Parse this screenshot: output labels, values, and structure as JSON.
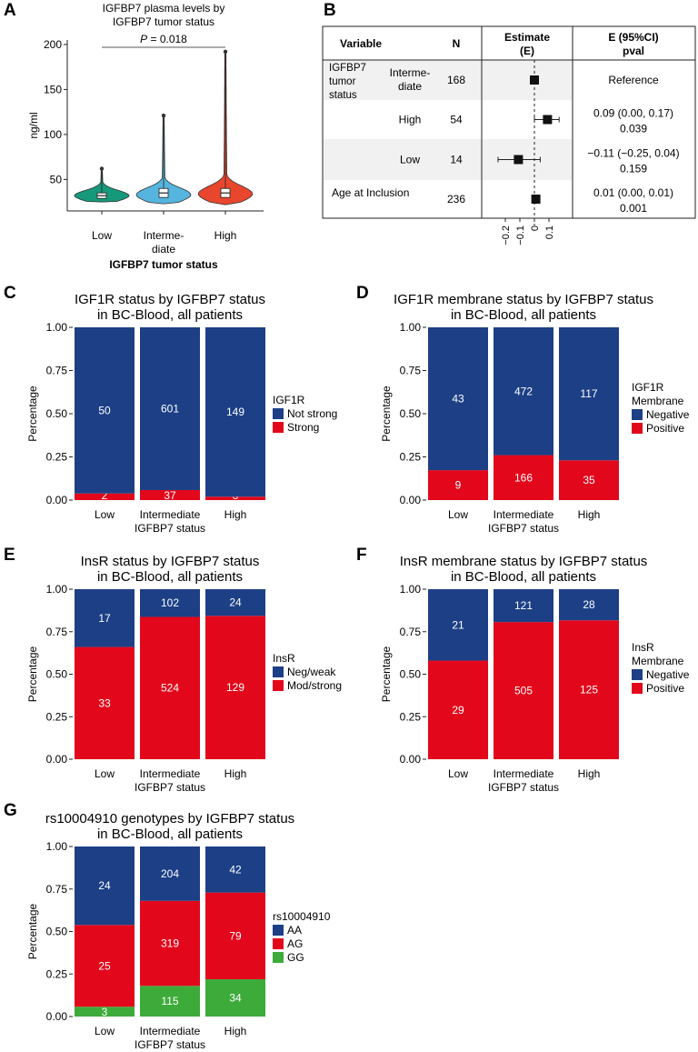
{
  "colors": {
    "navy": "#1c3f86",
    "red": "#e2071b",
    "green": "#3dab3a",
    "violin_low": "#16997a",
    "violin_mid": "#55b5df",
    "violin_high": "#e8462d",
    "text": "#1a1a1a"
  },
  "panels": {
    "a": "A",
    "b": "B",
    "c": "C",
    "d": "D",
    "e": "E",
    "f": "F",
    "g": "G"
  },
  "chart_data": [
    {
      "id": "A",
      "type": "violin",
      "title_line1": "IGFBP7 plasma levels by",
      "title_line2": "IGFBP7 tumor status",
      "ylabel": "ng/ml",
      "xlabel": "IGFBP7 tumor status",
      "y_ticks": [
        "50",
        "100",
        "150",
        "200"
      ],
      "ylim": [
        15,
        205
      ],
      "p_label": "P",
      "p_value": "= 0.018",
      "groups": [
        {
          "label_line1": "Low",
          "label_line2": "",
          "min": 25,
          "q1": 29,
          "median": 32,
          "q3": 35,
          "max": 62,
          "mode": 32,
          "spread": 26
        },
        {
          "label_line1": "Interme-",
          "label_line2": "diate",
          "min": 23,
          "q1": 30,
          "median": 35,
          "q3": 40,
          "max": 121,
          "mode": 33,
          "spread": 34
        },
        {
          "label_line1": "High",
          "label_line2": "",
          "min": 22,
          "q1": 30,
          "median": 35,
          "q3": 40,
          "max": 192,
          "mode": 34,
          "spread": 38
        }
      ]
    },
    {
      "id": "B",
      "type": "forest",
      "headers": {
        "variable": "Variable",
        "n": "N",
        "estimate1": "Estimate",
        "estimate2": "(E)",
        "ci1": "E (95%CI)",
        "ci2": "pval"
      },
      "x_ticks": [
        "−0.2",
        "−0.1",
        "0",
        "0.1"
      ],
      "x_tick_values": [
        -0.2,
        -0.1,
        0,
        0.1
      ],
      "xlim": [
        -0.3,
        0.2
      ],
      "rows": [
        {
          "var_a1": "IGFBP7",
          "var_a2": "tumor",
          "var_a3": "status",
          "var_b1": "Interme-",
          "var_b2": "diate",
          "n": "168",
          "est": 0.0,
          "lo": null,
          "hi": null,
          "ci": "Reference",
          "pval": ""
        },
        {
          "var_b1": "High",
          "n": "54",
          "est": 0.09,
          "lo": 0.0,
          "hi": 0.17,
          "ci": "0.09 (0.00, 0.17)",
          "pval": "0.039"
        },
        {
          "var_b1": "Low",
          "n": "14",
          "est": -0.11,
          "lo": -0.25,
          "hi": 0.04,
          "ci": "−0.11 (−0.25, 0.04)",
          "pval": "0.159"
        },
        {
          "var_a1": "Age at Inclusion",
          "n": "236",
          "est": 0.01,
          "lo": 0.0,
          "hi": 0.01,
          "ci": "0.01 (0.00, 0.01)",
          "pval": "0.001"
        }
      ]
    },
    {
      "id": "C",
      "type": "stacked_bar",
      "title_line1": "IGF1R status by IGFBP7 status",
      "title_line2": "in BC-Blood, all patients",
      "ylabel": "Percentage",
      "xlabel": "IGFBP7 status",
      "categories": [
        "Low",
        "Intermediate",
        "High"
      ],
      "y_ticks": [
        "0.00",
        "0.25",
        "0.50",
        "0.75",
        "1.00"
      ],
      "legend_title": [
        "IGF1R"
      ],
      "series": [
        {
          "name": "Not strong",
          "color": "#1c3f86",
          "values": [
            50,
            601,
            149
          ]
        },
        {
          "name": "Strong",
          "color": "#e2071b",
          "values": [
            2,
            37,
            3
          ]
        }
      ]
    },
    {
      "id": "D",
      "type": "stacked_bar",
      "title_line1": "IGF1R membrane status by IGFBP7 status",
      "title_line2": "in BC-Blood, all patients",
      "ylabel": "Percentage",
      "xlabel": "IGFBP7 status",
      "categories": [
        "Low",
        "Intermediate",
        "High"
      ],
      "y_ticks": [
        "0.00",
        "0.25",
        "0.50",
        "0.75",
        "1.00"
      ],
      "legend_title": [
        "IGF1R",
        "Membrane"
      ],
      "series": [
        {
          "name": "Negative",
          "color": "#1c3f86",
          "values": [
            43,
            472,
            117
          ]
        },
        {
          "name": "Positive",
          "color": "#e2071b",
          "values": [
            9,
            166,
            35
          ]
        }
      ]
    },
    {
      "id": "E",
      "type": "stacked_bar",
      "title_line1": "InsR status by IGFBP7 status",
      "title_line2": "in BC-Blood, all patients",
      "ylabel": "Percentage",
      "xlabel": "IGFBP7 status",
      "categories": [
        "Low",
        "Intermediate",
        "High"
      ],
      "y_ticks": [
        "0.00",
        "0.25",
        "0.50",
        "0.75",
        "1.00"
      ],
      "legend_title": [
        "InsR"
      ],
      "series": [
        {
          "name": "Neg/weak",
          "color": "#1c3f86",
          "values": [
            17,
            102,
            24
          ]
        },
        {
          "name": "Mod/strong",
          "color": "#e2071b",
          "values": [
            33,
            524,
            129
          ]
        }
      ]
    },
    {
      "id": "F",
      "type": "stacked_bar",
      "title_line1": "InsR membrane status by IGFBP7 status",
      "title_line2": "in BC-Blood, all patients",
      "ylabel": "Percentage",
      "xlabel": "IGFBP7 status",
      "categories": [
        "Low",
        "Intermediate",
        "High"
      ],
      "y_ticks": [
        "0.00",
        "0.25",
        "0.50",
        "0.75",
        "1.00"
      ],
      "legend_title": [
        "InsR",
        "Membrane"
      ],
      "series": [
        {
          "name": "Negative",
          "color": "#1c3f86",
          "values": [
            21,
            121,
            28
          ]
        },
        {
          "name": "Positive",
          "color": "#e2071b",
          "values": [
            29,
            505,
            125
          ]
        }
      ]
    },
    {
      "id": "G",
      "type": "stacked_bar",
      "title_line1": "rs10004910 genotypes by IGFBP7 status",
      "title_line2": "in BC-Blood, all patients",
      "ylabel": "Percentage",
      "xlabel": "IGFBP7 status",
      "categories": [
        "Low",
        "Intermediate",
        "High"
      ],
      "y_ticks": [
        "0.00",
        "0.25",
        "0.50",
        "0.75",
        "1.00"
      ],
      "legend_title": [
        "rs10004910"
      ],
      "series": [
        {
          "name": "AA",
          "color": "#1c3f86",
          "values": [
            24,
            204,
            42
          ]
        },
        {
          "name": "AG",
          "color": "#e2071b",
          "values": [
            25,
            319,
            79
          ]
        },
        {
          "name": "GG",
          "color": "#3dab3a",
          "values": [
            3,
            115,
            34
          ]
        }
      ]
    }
  ]
}
